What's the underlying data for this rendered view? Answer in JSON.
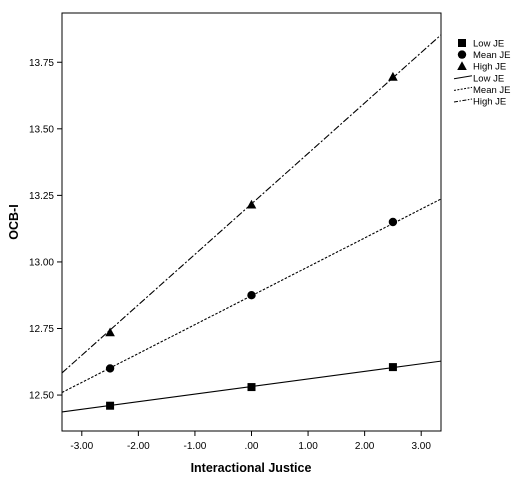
{
  "chart_data": {
    "type": "line",
    "xlabel": "Interactional Justice",
    "ylabel": "OCB-I",
    "xlim": [
      -3.35,
      3.35
    ],
    "ylim": [
      12.365,
      13.935
    ],
    "x_ticks": [
      -3.0,
      -2.0,
      -1.0,
      0.0,
      1.0,
      2.0,
      3.0
    ],
    "x_tick_labels": [
      "-3.00",
      "-2.00",
      "-1.00",
      ".00",
      "1.00",
      "2.00",
      "3.00"
    ],
    "y_ticks": [
      12.5,
      12.75,
      13.0,
      13.25,
      13.5,
      13.75
    ],
    "y_tick_labels": [
      "12.50",
      "12.75",
      "13.00",
      "13.25",
      "13.50",
      "13.75"
    ],
    "grid": false,
    "legend_position": "right",
    "markers": [
      {
        "name": "Low JE",
        "symbol": "square",
        "x": [
          -2.5,
          0.0,
          2.5
        ],
        "y": [
          12.46,
          12.53,
          12.605
        ]
      },
      {
        "name": "Mean JE",
        "symbol": "circle",
        "x": [
          -2.5,
          0.0,
          2.5
        ],
        "y": [
          12.6,
          12.875,
          13.15
        ]
      },
      {
        "name": "High JE",
        "symbol": "triangle",
        "x": [
          -2.5,
          0.0,
          2.5
        ],
        "y": [
          12.735,
          13.215,
          13.695
        ]
      }
    ],
    "lines": [
      {
        "name": "Low JE",
        "style": "solid",
        "intercept": 12.532,
        "slope": 0.0285
      },
      {
        "name": "Mean JE",
        "style": "dotted",
        "intercept": 12.873,
        "slope": 0.1085
      },
      {
        "name": "High JE",
        "style": "dashdot",
        "intercept": 13.218,
        "slope": 0.1895
      }
    ]
  }
}
